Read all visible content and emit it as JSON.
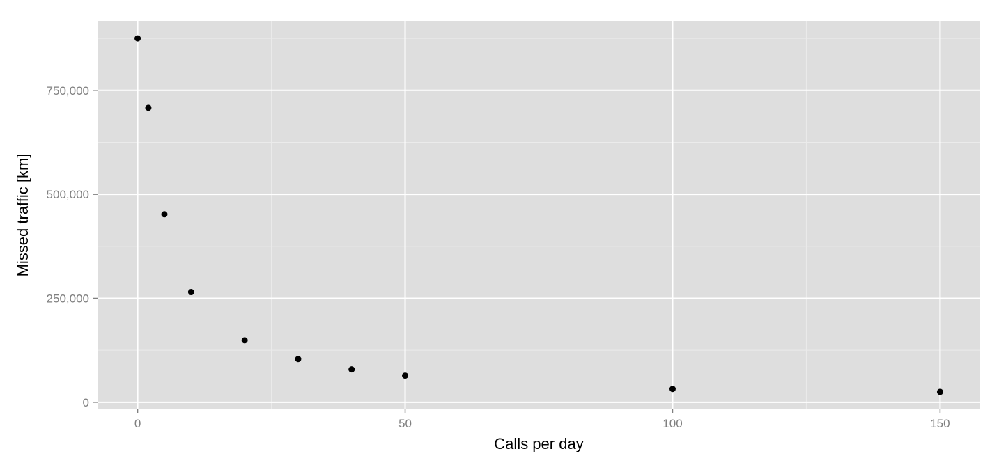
{
  "chart_data": {
    "type": "scatter",
    "title": "",
    "xlabel": "Calls per day",
    "ylabel": "Missed traffic [km]",
    "xlim": [
      -7.5,
      157.5
    ],
    "ylim": [
      -17000,
      917000
    ],
    "x_ticks": [
      0,
      50,
      100,
      150
    ],
    "x_tick_labels": [
      "0",
      "50",
      "100",
      "150"
    ],
    "y_ticks": [
      0,
      250000,
      500000,
      750000
    ],
    "y_tick_labels": [
      "0",
      "250,000",
      "500,000",
      "750,000"
    ],
    "grid": true,
    "legend": "none",
    "colors": {
      "panel": "#dedede",
      "grid_major": "#ffffff",
      "grid_minor": "#ebebeb",
      "point": "#000000",
      "tick_text": "#7f7f7f"
    },
    "series": [
      {
        "x": [
          0,
          2,
          5,
          10,
          20,
          30,
          40,
          50,
          100,
          150
        ],
        "y": [
          875000,
          708000,
          452000,
          265000,
          149000,
          104000,
          79000,
          64000,
          32000,
          25000
        ]
      }
    ]
  }
}
